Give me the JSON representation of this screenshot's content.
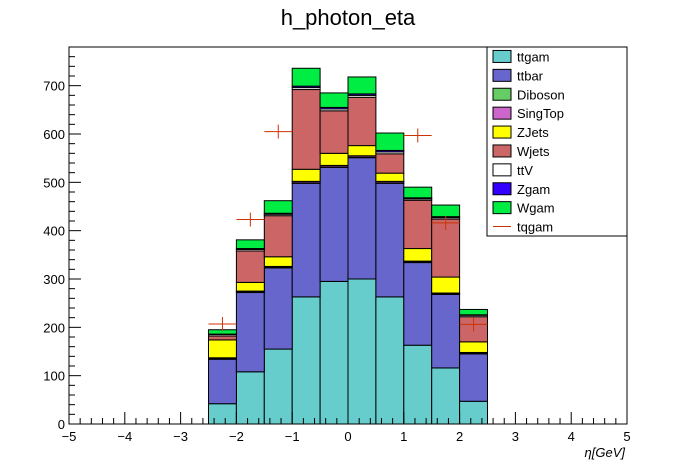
{
  "chart_data": {
    "type": "bar",
    "title": "h_photon_eta",
    "xlabel": "η[GeV]",
    "ylabel": "",
    "xlim": [
      -5,
      5
    ],
    "ylim": [
      0,
      780
    ],
    "x_ticks": [
      -5,
      -4,
      -3,
      -2,
      -1,
      0,
      1,
      2,
      3,
      4,
      5
    ],
    "y_ticks": [
      0,
      100,
      200,
      300,
      400,
      500,
      600,
      700
    ],
    "grid": false,
    "legend_position": "top-right",
    "bin_edges": [
      -2.5,
      -2.0,
      -1.5,
      -1.0,
      -0.5,
      0.0,
      0.5,
      1.0,
      1.5,
      2.0,
      2.5
    ],
    "stacked_series": [
      {
        "name": "ttgam",
        "color": "#66cccc",
        "values": [
          42,
          108,
          155,
          263,
          295,
          300,
          263,
          163,
          116,
          47
        ]
      },
      {
        "name": "ttbar",
        "color": "#6666cc",
        "values": [
          92,
          164,
          168,
          235,
          236,
          251,
          235,
          171,
          152,
          98
        ]
      },
      {
        "name": "Diboson",
        "color": "#66cc66",
        "values": [
          1,
          1,
          1,
          1,
          1,
          1,
          1,
          1,
          1,
          1
        ]
      },
      {
        "name": "SingTop",
        "color": "#cc66cc",
        "values": [
          2,
          2,
          2,
          3,
          3,
          3,
          3,
          2,
          2,
          2
        ]
      },
      {
        "name": "ZJets",
        "color": "#ffff00",
        "values": [
          37,
          18,
          20,
          25,
          25,
          21,
          17,
          26,
          33,
          22
        ]
      },
      {
        "name": "Wjets",
        "color": "#cc6666",
        "values": [
          8,
          65,
          85,
          165,
          88,
          100,
          40,
          100,
          120,
          52
        ]
      },
      {
        "name": "ttV",
        "color": "#ffffff",
        "values": [
          3,
          3,
          3,
          4,
          4,
          4,
          4,
          3,
          3,
          3
        ]
      },
      {
        "name": "Zgam",
        "color": "#3300ff",
        "values": [
          1,
          2,
          2,
          3,
          3,
          3,
          3,
          2,
          2,
          1
        ]
      },
      {
        "name": "Wgam",
        "color": "#00ee44",
        "values": [
          9,
          18,
          26,
          37,
          30,
          35,
          36,
          22,
          24,
          11
        ]
      }
    ],
    "overlay_series": {
      "name": "tqgam",
      "color": "#cc3300",
      "points": [
        {
          "x": -2.25,
          "y": 207
        },
        {
          "x": -1.75,
          "y": 423
        },
        {
          "x": -1.25,
          "y": 605
        },
        {
          "x": 1.25,
          "y": 597
        },
        {
          "x": 1.75,
          "y": 416
        },
        {
          "x": 2.25,
          "y": 206
        }
      ]
    }
  }
}
